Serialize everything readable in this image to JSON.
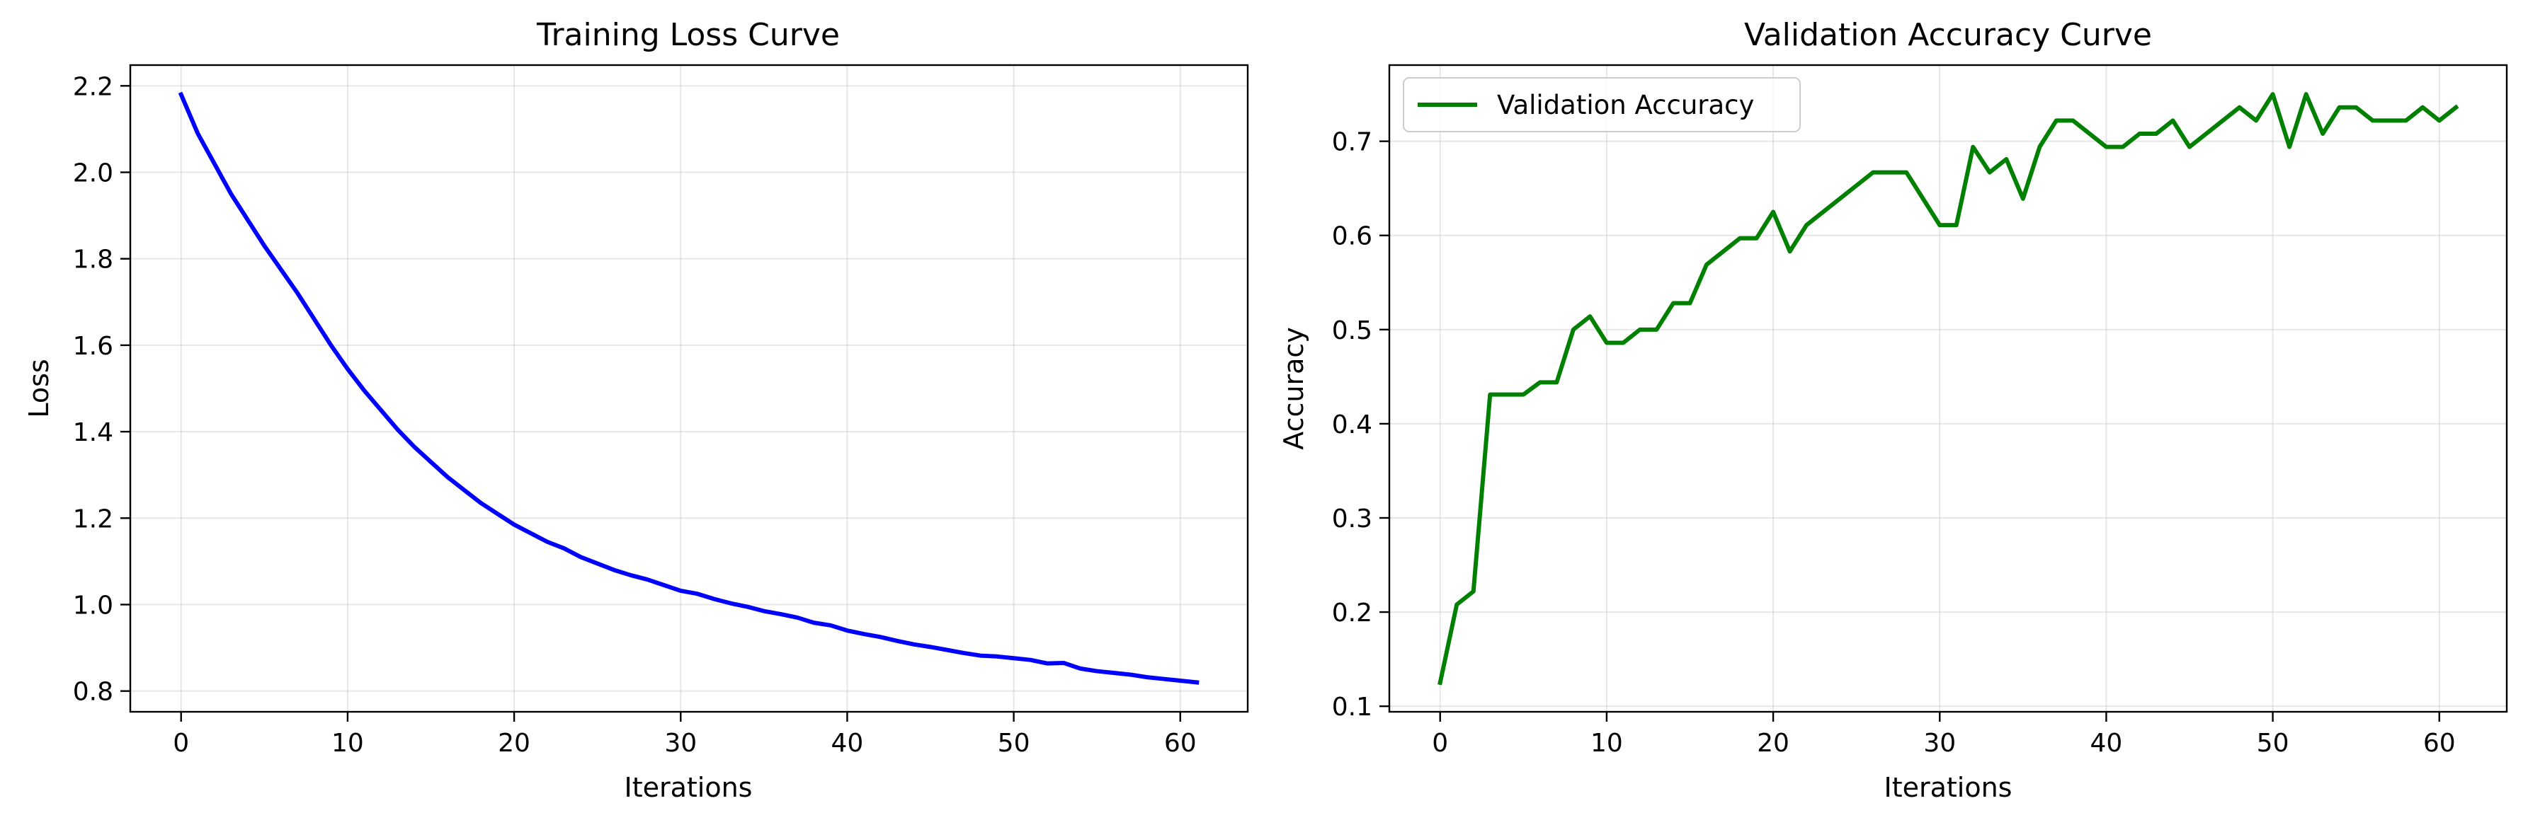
{
  "chart_data": [
    {
      "type": "line",
      "title": "Training Loss Curve",
      "xlabel": "Iterations",
      "ylabel": "Loss",
      "xlim": [
        -3.05,
        64.05
      ],
      "ylim": [
        0.752,
        2.248
      ],
      "xticks": [
        0,
        10,
        20,
        30,
        40,
        50,
        60
      ],
      "yticks": [
        0.8,
        1.0,
        1.2,
        1.4,
        1.6,
        1.8,
        2.0,
        2.2
      ],
      "grid": true,
      "legend": null,
      "series": [
        {
          "name": "Training Loss",
          "color": "#0000ff",
          "x": [
            0,
            1,
            2,
            3,
            4,
            5,
            6,
            7,
            8,
            9,
            10,
            11,
            12,
            13,
            14,
            15,
            16,
            17,
            18,
            19,
            20,
            21,
            22,
            23,
            24,
            25,
            26,
            27,
            28,
            29,
            30,
            31,
            32,
            33,
            34,
            35,
            36,
            37,
            38,
            39,
            40,
            41,
            42,
            43,
            44,
            45,
            46,
            47,
            48,
            49,
            50,
            51,
            52,
            53,
            54,
            55,
            56,
            57,
            58,
            59,
            60,
            61
          ],
          "values": [
            2.18,
            2.09,
            2.02,
            1.95,
            1.89,
            1.83,
            1.775,
            1.72,
            1.66,
            1.6,
            1.545,
            1.495,
            1.45,
            1.405,
            1.365,
            1.33,
            1.295,
            1.265,
            1.235,
            1.21,
            1.185,
            1.165,
            1.145,
            1.13,
            1.11,
            1.095,
            1.08,
            1.068,
            1.058,
            1.045,
            1.032,
            1.025,
            1.013,
            1.003,
            0.995,
            0.985,
            0.978,
            0.97,
            0.958,
            0.952,
            0.94,
            0.932,
            0.925,
            0.916,
            0.908,
            0.902,
            0.895,
            0.888,
            0.882,
            0.88,
            0.876,
            0.872,
            0.864,
            0.865,
            0.852,
            0.846,
            0.842,
            0.838,
            0.832,
            0.828,
            0.824,
            0.82
          ]
        }
      ]
    },
    {
      "type": "line",
      "title": "Validation Accuracy Curve",
      "xlabel": "Iterations",
      "ylabel": "Accuracy",
      "xlim": [
        -3.05,
        64.05
      ],
      "ylim": [
        0.0941,
        0.7809
      ],
      "xticks": [
        0,
        10,
        20,
        30,
        40,
        50,
        60
      ],
      "yticks": [
        0.1,
        0.2,
        0.3,
        0.4,
        0.5,
        0.6,
        0.7
      ],
      "grid": true,
      "legend": "top-left",
      "series": [
        {
          "name": "Validation Accuracy",
          "color": "#008000",
          "x": [
            0,
            1,
            2,
            3,
            4,
            5,
            6,
            7,
            8,
            9,
            10,
            11,
            12,
            13,
            14,
            15,
            16,
            17,
            18,
            19,
            20,
            21,
            22,
            23,
            24,
            25,
            26,
            27,
            28,
            29,
            30,
            31,
            32,
            33,
            34,
            35,
            36,
            37,
            38,
            39,
            40,
            41,
            42,
            43,
            44,
            45,
            46,
            47,
            48,
            49,
            50,
            51,
            52,
            53,
            54,
            55,
            56,
            57,
            58,
            59,
            60,
            61
          ],
          "values": [
            0.125,
            0.208,
            0.222,
            0.431,
            0.431,
            0.431,
            0.444,
            0.444,
            0.5,
            0.514,
            0.486,
            0.486,
            0.5,
            0.5,
            0.528,
            0.528,
            0.569,
            0.583,
            0.597,
            0.597,
            0.625,
            0.583,
            0.611,
            0.625,
            0.639,
            0.653,
            0.667,
            0.667,
            0.667,
            0.639,
            0.611,
            0.611,
            0.694,
            0.667,
            0.681,
            0.639,
            0.694,
            0.722,
            0.722,
            0.708,
            0.694,
            0.694,
            0.708,
            0.708,
            0.722,
            0.694,
            0.708,
            0.722,
            0.736,
            0.722,
            0.75,
            0.694,
            0.75,
            0.708,
            0.736,
            0.736,
            0.722,
            0.722,
            0.722,
            0.736,
            0.722,
            0.736
          ]
        }
      ]
    }
  ]
}
